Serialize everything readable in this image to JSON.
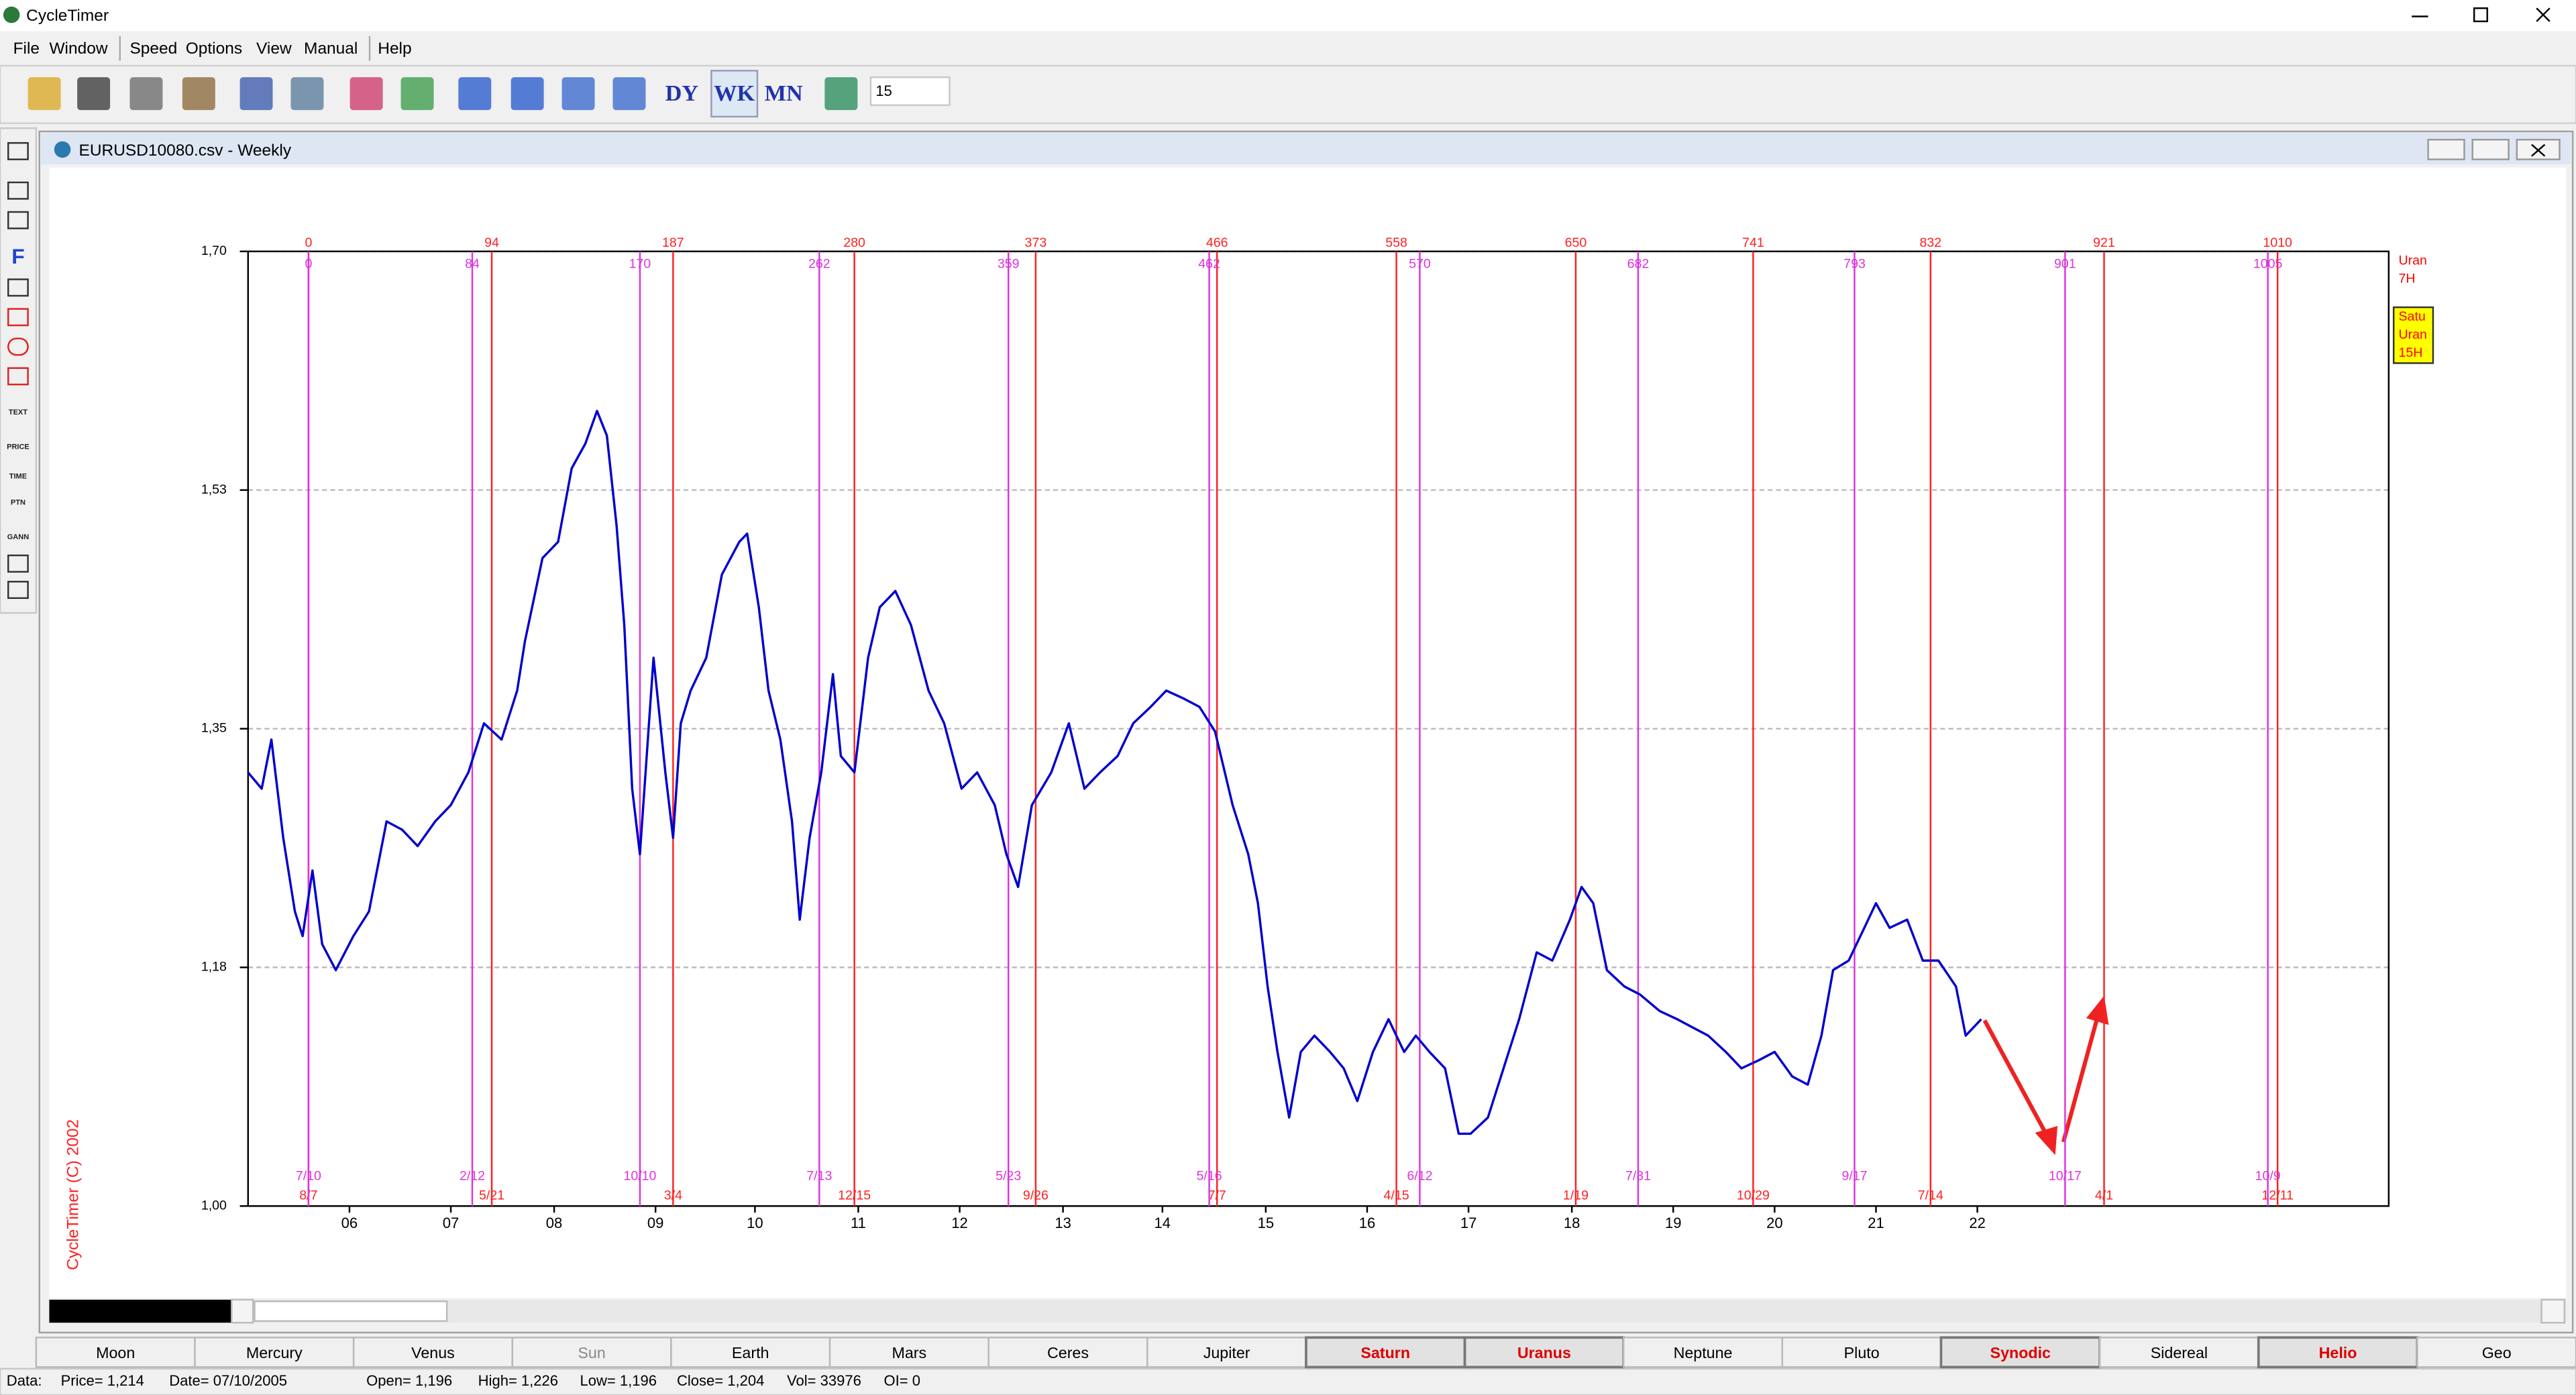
{
  "app": {
    "title": "CycleTimer",
    "menu": [
      "File",
      "Window",
      "Speed",
      "Options",
      "View",
      "Manual",
      "Help"
    ],
    "toolbar": {
      "icon_labels": [
        "DY",
        "WK",
        "MN"
      ],
      "input": "15"
    },
    "tools": [
      "F",
      "TEXT",
      "PRICE",
      "TIME",
      "PTN",
      "GANN"
    ]
  },
  "chart_window": {
    "title": "EURUSD10080.csv - Weekly",
    "copyright": "CycleTimer (C) 2002"
  },
  "chart_data": {
    "type": "line",
    "color": "#0000cc",
    "xlim": [
      -31,
      1067
    ],
    "ylim": [
      1.0,
      1.7
    ],
    "yticks": [
      {
        "value": 1.0,
        "label": "1,00"
      },
      {
        "value": 1.175,
        "label": "1,18"
      },
      {
        "value": 1.35,
        "label": "1,35"
      },
      {
        "value": 1.525,
        "label": "1,53"
      },
      {
        "value": 1.7,
        "label": "1,70"
      }
    ],
    "xticks": [
      {
        "value": 21,
        "label": "06"
      },
      {
        "value": 73,
        "label": "07"
      },
      {
        "value": 126,
        "label": "08"
      },
      {
        "value": 178,
        "label": "09"
      },
      {
        "value": 229,
        "label": "10"
      },
      {
        "value": 282,
        "label": "11"
      },
      {
        "value": 334,
        "label": "12"
      },
      {
        "value": 387,
        "label": "13"
      },
      {
        "value": 438,
        "label": "14"
      },
      {
        "value": 491,
        "label": "15"
      },
      {
        "value": 543,
        "label": "16"
      },
      {
        "value": 595,
        "label": "17"
      },
      {
        "value": 648,
        "label": "18"
      },
      {
        "value": 700,
        "label": "19"
      },
      {
        "value": 752,
        "label": "20"
      },
      {
        "value": 804,
        "label": "21"
      },
      {
        "value": 856,
        "label": "22"
      }
    ],
    "grid": true,
    "x": [
      -31,
      -24,
      -19,
      -13,
      -7,
      -3,
      2,
      7,
      14,
      23,
      31,
      40,
      48,
      56,
      65,
      73,
      82,
      90,
      99,
      107,
      111,
      120,
      128,
      135,
      142,
      148,
      153,
      158,
      162,
      166,
      170,
      177,
      183,
      187,
      191,
      196,
      204,
      212,
      221,
      225,
      231,
      236,
      242,
      248,
      252,
      257,
      263,
      269,
      273,
      280,
      287,
      293,
      301,
      309,
      318,
      326,
      335,
      343,
      352,
      358,
      364,
      371,
      381,
      390,
      398,
      406,
      415,
      423,
      432,
      440,
      449,
      457,
      465,
      474,
      482,
      487,
      492,
      497,
      503,
      509,
      516,
      524,
      531,
      538,
      546,
      554,
      562,
      568,
      575,
      583,
      590,
      596,
      605,
      613,
      621,
      630,
      638,
      647,
      653,
      659,
      666,
      675,
      683,
      693,
      702,
      710,
      718,
      727,
      735,
      744,
      752,
      761,
      769,
      776,
      782,
      790,
      798,
      804,
      811,
      820,
      828,
      836,
      845,
      850,
      858
    ],
    "values": [
      1.318,
      1.306,
      1.342,
      1.27,
      1.216,
      1.198,
      1.246,
      1.192,
      1.173,
      1.198,
      1.216,
      1.282,
      1.276,
      1.264,
      1.282,
      1.294,
      1.318,
      1.354,
      1.342,
      1.378,
      1.414,
      1.475,
      1.487,
      1.541,
      1.559,
      1.583,
      1.565,
      1.499,
      1.426,
      1.306,
      1.258,
      1.402,
      1.318,
      1.27,
      1.354,
      1.378,
      1.402,
      1.463,
      1.487,
      1.493,
      1.439,
      1.378,
      1.342,
      1.282,
      1.21,
      1.27,
      1.318,
      1.39,
      1.33,
      1.318,
      1.402,
      1.439,
      1.451,
      1.426,
      1.378,
      1.354,
      1.306,
      1.318,
      1.294,
      1.258,
      1.234,
      1.294,
      1.318,
      1.354,
      1.306,
      1.318,
      1.33,
      1.354,
      1.366,
      1.378,
      1.372,
      1.366,
      1.348,
      1.294,
      1.258,
      1.222,
      1.161,
      1.113,
      1.065,
      1.113,
      1.125,
      1.113,
      1.101,
      1.077,
      1.113,
      1.137,
      1.113,
      1.125,
      1.113,
      1.101,
      1.053,
      1.053,
      1.065,
      1.101,
      1.137,
      1.186,
      1.18,
      1.21,
      1.234,
      1.222,
      1.173,
      1.161,
      1.155,
      1.143,
      1.137,
      1.131,
      1.125,
      1.113,
      1.101,
      1.107,
      1.113,
      1.095,
      1.089,
      1.125,
      1.173,
      1.18,
      1.204,
      1.222,
      1.204,
      1.21,
      1.18,
      1.18,
      1.161,
      1.125,
      1.137
    ],
    "cycles": [
      {
        "color": "#ff2020",
        "row": "outer",
        "positions": [
          0,
          94,
          187,
          280,
          373,
          466,
          558,
          650,
          741,
          832,
          921,
          1010
        ],
        "dates": [
          "8/7",
          "5/21",
          "3/4",
          "12/15",
          "9/26",
          "7/7",
          "4/15",
          "1/19",
          "10/29",
          "7/14",
          "4/1",
          "12/11"
        ]
      },
      {
        "color": "#dd33dd",
        "row": "inner",
        "positions": [
          0,
          84,
          170,
          262,
          359,
          462,
          570,
          682,
          793,
          901,
          1005
        ],
        "dates": [
          "7/10",
          "2/12",
          "10/10",
          "7/13",
          "5/23",
          "5/16",
          "6/12",
          "7/31",
          "9/17",
          "10/17",
          "10/9"
        ]
      }
    ],
    "legend": [
      {
        "lines": [
          "Uran",
          "7H"
        ],
        "color": "#ff0000"
      },
      {
        "lines": [
          "Satu",
          "Uran",
          "15H"
        ],
        "color": "#ff0000",
        "background": "#ffff00"
      }
    ]
  },
  "tabs": [
    {
      "label": "Moon"
    },
    {
      "label": "Mercury"
    },
    {
      "label": "Venus"
    },
    {
      "label": "Sun",
      "disabled": true
    },
    {
      "label": "Earth"
    },
    {
      "label": "Mars"
    },
    {
      "label": "Ceres"
    },
    {
      "label": "Jupiter"
    },
    {
      "label": "Saturn",
      "selected": true
    },
    {
      "label": "Uranus",
      "selected": true
    },
    {
      "label": "Neptune"
    },
    {
      "label": "Pluto"
    },
    {
      "label": "Synodic",
      "selected": true
    },
    {
      "label": "Sidereal"
    },
    {
      "label": "Helio",
      "selected": true
    },
    {
      "label": "Geo"
    }
  ],
  "status": {
    "label": "Data:",
    "items": [
      "Price= 1,214",
      "Date= 07/10/2005",
      "Open= 1,196",
      "High= 1,226",
      "Low= 1,196",
      "Close= 1,204",
      "Vol= 33976",
      "OI= 0"
    ]
  }
}
